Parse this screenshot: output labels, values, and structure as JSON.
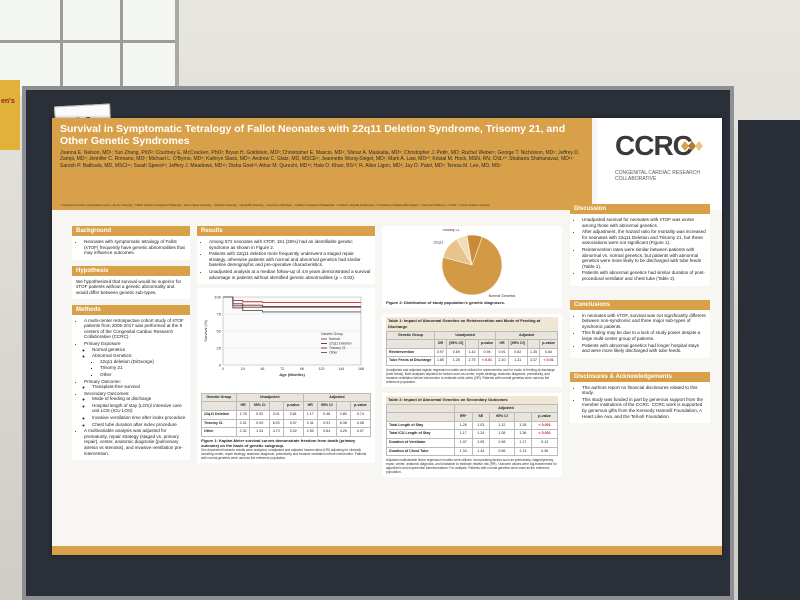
{
  "tag": "62",
  "sign_text": "en's",
  "poster": {
    "title": "Survival in Symptomatic Tetralogy of Fallot Neonates with 22q11 Deletion Syndrome, Trisomy 21, and Other Genetic Syndromes",
    "authors": "Joanna E. Nelson, MD¹; Yun Zhang, PhD²; Courtney E. McCracken, PhD²; Bryan H. Goldstein, MD³; Christopher E. Mascio, MD⁴; Shiraz A. Maskatia, MD⁵; Christopher J. Petit¹, MD; Rachel Weber¹; George T. Nicholson, MD⁶; Jeffrey D. Zampi, MD⁷; Jennifer C. Romano, MD⁷; Michael L. O'Byrne, MD⁸; Kathryn Slack, MD⁹; Andrew C. Glatz, MD, MSCE⁸; Jeannette Wong-Siegel, MD¹; Mark A. Law, MD¹⁰; Kristal M. Hock, MSN, RN, CNL¹⁰; Shabana Shahanavaz, MD¹¹; Sarosh P. Batlivala, MD, MSCI¹¹; Sarah Speed¹¹; Jeffery J. Meadows, MD¹²; Disha Goel¹³; Athar M. Qureshi, MD¹³; Hala O. Khan, BS¹³; R. Allen Ligon, MD¹; Jay D. Patel, MD¹; Teresa M. Lee, MD, MS¹",
    "affiliations": "¹ Columbia University Irving Medical Center; ² Emory University; ³ UPMC Children's Hospital of Pittsburgh; ⁴ West Virginia University; ⁵ Stanford University; ⁶ Vanderbilt University; ⁷ University of Michigan; ⁸ Children's Hospital of Philadelphia; ⁹ Children's Hospital of Wisconsin; ¹⁰ University of Alabama Birmingham; ¹¹ Cincinnati Children's; ¹² UCSF; ¹³ Texas Children's Hospital",
    "logo": {
      "mark": "CCRC",
      "subtitle": "CONGENITAL CARDIAC RESEARCH COLLABORATIVE"
    },
    "background": {
      "heading": "Background",
      "items": [
        "Neonates with symptomatic tetralogy of Fallot (sTOF) frequently have genetic abnormalities that may influence outcomes."
      ]
    },
    "hypothesis": {
      "heading": "Hypothesis",
      "text": "We hypothesized that survival would be superior for sTOF patients without a genetic abnormality and would differ between genetic sub-types."
    },
    "methods": {
      "heading": "Methods",
      "intro": "A multi-center retrospective cohort study of sTOF patients from 2005-2017 was performed at the 9 centers of the Congenital Cardiac Research Collaborative (CCRC).",
      "primary_exposure": "Primary Exposure",
      "exposures": [
        "Normal genetics",
        "Abnormal Genetics:"
      ],
      "genetic_types": [
        "22q11 deletion (DiGeorge)",
        "Trisomy 21",
        "Other"
      ],
      "primary_outcome": "Primary Outcome:",
      "primary_outcomes": [
        "Transplant-free survival"
      ],
      "secondary_outcome": "Secondary Outcomes:",
      "secondary_outcomes": [
        "Mode of feeding at discharge",
        "Hospital length of stay (LOS)/ intensive care unit LOS (ICU LOS)",
        "Invasive ventilation time after index procedure",
        "Chest tube duration after index procedure"
      ],
      "multivariable": "A multivariable analysis was adjusted for prematurity, repair strategy (staged vs. primary repair), center, anatomic diagnosis (pulmonary atresia vs stenosis), and invasive ventilation pre-intervention."
    },
    "results": {
      "heading": "Results",
      "items": [
        "Among 572 neonates with sTOF, 151 (26%) had an identifiable genetic syndrome as shown in Figure 2.",
        "Patients with 22q11 deletion more frequently underwent a staged repair strategy, otherwise patients with normal and abnormal genetics had similar baseline demographic and pre-operative characteristics.",
        "Unadjusted analysis at a median follow-up of 4.8 years demonstrated a survival advantage in patients without identified genetic abnormalities (p = 0.02)."
      ]
    },
    "figure1": {
      "ylabel": "Survival (%)",
      "xlabel": "Age (Months)",
      "legend_title": "Genetic Group",
      "legend": [
        "Normal",
        "22q11 Deletion",
        "Trisomy 21",
        "Other"
      ],
      "caption": "Figure 1: Kaplan-Meier survival curves demonstrate freedom from death (primary outcome) on the basis of genetic subgroup.",
      "note": "Sex-dependent hazards results were analyzed, unadjusted and adjusted hazard ratios (HR) adjusting for clinically including center, repair strategy, anatomic diagnosis, prematurity and invasive ventilation before intervention. Patients with normal genetics were used as the reference population.",
      "table": {
        "group_header": "Genetic Group",
        "unadjusted": "Unadjusted",
        "adjusted": "Adjusted",
        "cols": [
          "HR",
          "95% CI",
          "",
          "p-value",
          "HR",
          "95% CI",
          "",
          "p-value"
        ],
        "rows": [
          {
            "label": "22q11 Deletion",
            "cells": [
              "1.78",
              "0.92",
              "3.01",
              "0.81",
              "1.17",
              "0.46",
              "2.80",
              "0.74"
            ]
          },
          {
            "label": "Trisomy 21",
            "cells": [
              "2.41",
              "0.94",
              "6.20",
              "0.07",
              "2.41",
              "0.91",
              "6.38",
              "0.08"
            ]
          },
          {
            "label": "Other",
            "cells": [
              "2.32",
              "1.34",
              "4.73",
              "0.02",
              "2.50",
              "0.84",
              "4.25",
              "0.07"
            ]
          }
        ]
      }
    },
    "figure2": {
      "caption": "Figure 2: Distribution of study population's genetic diagnoses.",
      "labels": [
        "Normal Genetics",
        "22q11",
        "Trisomy 21",
        "Other"
      ]
    },
    "table1": {
      "title": "Table 1: Impact of Abnormal Genetics on Reintervention and Mode of Feeding at Discharge",
      "group_header": "Genetic Group",
      "unadjusted": "Unadjusted",
      "adjusted": "Adjusted",
      "cols": [
        "OR",
        "[95% CI]",
        "",
        "p-value",
        "OR",
        "[95% CI]",
        "",
        "p-value"
      ],
      "rows": [
        {
          "label": "Reintervention",
          "cells": [
            "0.97",
            "0.69",
            "1.42",
            "0.94",
            "0.91",
            "0.62",
            "1.35",
            "0.64"
          ]
        },
        {
          "label": "Tube Feeds at Discharge",
          "cells": [
            "1.85",
            "1.25",
            "2.75",
            "< 0.01",
            "2.10",
            "1.31",
            "3.37",
            "< 0.01"
          ]
        }
      ],
      "note": "Unadjusted and adjusted logistic regression models were utilized for reintervention and for mode of feeding at discharge (tube feeds). Both analyses adjusted for factors such as center, repair strategy, anatomic diagnosis, prematurity, and invasive ventilation before intervention to estimate odds ratios (OR). Patients with normal genetics were used as the reference population."
    },
    "table2": {
      "title": "Table 2: Impact of Abnormal Genetics on Secondary Outcomes",
      "adjusted": "Adjusted",
      "cols": [
        "RR*",
        "SE",
        "95% CI",
        "",
        "p-value"
      ],
      "rows": [
        {
          "label": "Total Length of Stay",
          "cells": [
            "1.26",
            "1.03",
            "1.12",
            "1.28",
            "< 0.001"
          ]
        },
        {
          "label": "Total ICU Length of Stay",
          "cells": [
            "1.17",
            "1.24",
            "1.08",
            "1.36",
            "< 0.001"
          ]
        },
        {
          "label": "Duration of Ventilator",
          "cells": [
            "1.07",
            "1.05",
            "0.98",
            "1.17",
            "0.13"
          ]
        },
        {
          "label": "Duration of Chest Tube",
          "cells": [
            "1.34",
            "1.34",
            "0.56",
            "1.13",
            "0.36"
          ]
        }
      ],
      "note": "Adjusted multivariable linear regression models were utilized, incorporating factors such as prematurity, staged/primary repair, center, anatomic diagnosis, and intubation to estimate relative risk (RR). Outcome values were log-transformed for algorithmic and exponential transformations. For analysis. Patients with normal genetics were used as the reference population."
    },
    "discussion": {
      "heading": "Discussion",
      "items": [
        "Unadjusted survival for neonates with sTOF was worse among those with abnormal genetics.",
        "After adjustment, the hazard ratio for mortality was increased for neonates with 22q11 Deletion and Trisomy 21, but these associations were not significant (Figure 1).",
        "Reintervention rates were similar between patients with abnormal vs. normal genetics, but patients with abnormal genetics were more likely to be discharged with tube feeds (Table 1).",
        "Patients with abnormal genetics had similar duration of post-procedural ventilator and chest tube (Table 2)."
      ]
    },
    "conclusions": {
      "heading": "Conclusions",
      "items": [
        "In neonates with sTOF, survival was not significantly different between non-syndromic and three major sub-types of syndromic patients.",
        "This finding may be due to a lack of study power despite a large multi-center group of patients.",
        "Patients with abnormal genetics had longer hospital stays and were more likely discharged with tube feeds."
      ]
    },
    "disclosures": {
      "heading": "Disclosures & Acknowledgements",
      "items": [
        "The authors report no financial disclosures related to this study.",
        "This study was funded in part by generous support from the member institutions of the CCRC. CCRC work is supported by generous gifts from the Kennedy Hammill Foundation, A Heart Like Ava, and the Tell-ah Foundation."
      ]
    }
  },
  "chart_data": [
    {
      "type": "line",
      "xlabel": "Age (Months)",
      "ylabel": "Survival (%)",
      "x": [
        0,
        12,
        24,
        36,
        48,
        60,
        72,
        84,
        96,
        108,
        120,
        132,
        144,
        156,
        168
      ],
      "series": [
        {
          "name": "Normal",
          "values": [
            100,
            95,
            93,
            93,
            92,
            92,
            92,
            92,
            92,
            92,
            92,
            92,
            92,
            92,
            92
          ]
        },
        {
          "name": "22q11 Deletion",
          "values": [
            100,
            90,
            88,
            88,
            86,
            86,
            86,
            86,
            86,
            86,
            86,
            86,
            86,
            86,
            86
          ]
        },
        {
          "name": "Trisomy 21",
          "values": [
            100,
            87,
            85,
            85,
            85,
            85,
            85,
            85,
            85,
            85,
            85,
            85,
            85,
            85,
            85
          ]
        },
        {
          "name": "Other",
          "values": [
            100,
            84,
            80,
            80,
            78,
            78,
            78,
            78,
            78,
            78,
            78,
            78,
            78,
            78,
            78
          ]
        }
      ],
      "colors": [
        "#c03030",
        "#3a3a3a",
        "#8a2a2a",
        "#555555"
      ],
      "ylim": [
        0,
        100
      ],
      "xlim": [
        0,
        168
      ],
      "legend": "bottom-right"
    },
    {
      "type": "pie",
      "categories": [
        "Normal Genetics",
        "22q11",
        "Trisomy 21",
        "Other"
      ],
      "values": [
        421,
        70,
        34,
        47
      ],
      "colors": [
        "#d39a45",
        "#e6c48c",
        "#f1deb8",
        "#c98a3a"
      ]
    }
  ]
}
